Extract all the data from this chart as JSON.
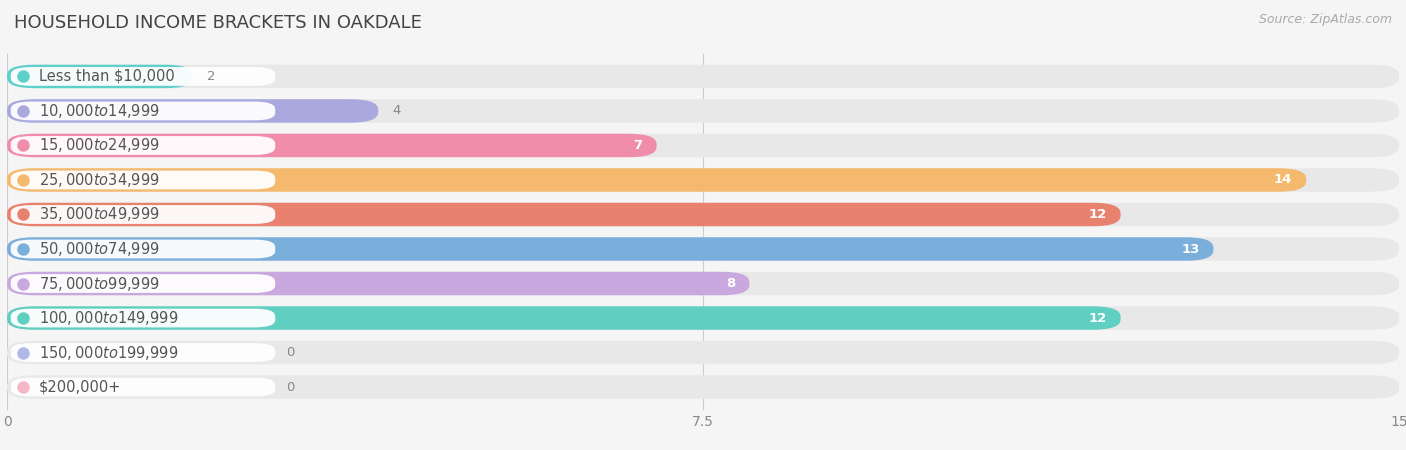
{
  "title": "HOUSEHOLD INCOME BRACKETS IN OAKDALE",
  "source": "Source: ZipAtlas.com",
  "categories": [
    "Less than $10,000",
    "$10,000 to $14,999",
    "$15,000 to $24,999",
    "$25,000 to $34,999",
    "$35,000 to $49,999",
    "$50,000 to $74,999",
    "$75,000 to $99,999",
    "$100,000 to $149,999",
    "$150,000 to $199,999",
    "$200,000+"
  ],
  "values": [
    2,
    4,
    7,
    14,
    12,
    13,
    8,
    12,
    0,
    0
  ],
  "bar_colors": [
    "#5ecfcb",
    "#a9a9e0",
    "#f08dab",
    "#f5b96e",
    "#e8826e",
    "#7aaedb",
    "#c9a8e0",
    "#5ecfc0",
    "#b0b8e8",
    "#f5b8c8"
  ],
  "label_colors_outside": "#888888",
  "label_colors_inside": "#ffffff",
  "xlim": [
    0,
    15
  ],
  "xticks": [
    0,
    7.5,
    15
  ],
  "background_color": "#f5f5f5",
  "bar_background_color": "#e8e8e8",
  "title_fontsize": 13,
  "label_fontsize": 10.5,
  "value_fontsize": 9.5,
  "source_fontsize": 9
}
